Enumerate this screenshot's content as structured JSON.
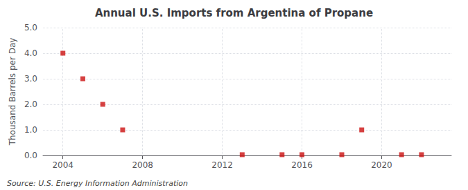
{
  "chart_data": {
    "type": "scatter",
    "title": "Annual U.S. Imports from Argentina of Propane",
    "ylabel": "Thousand Barrels per Day",
    "annotations": [
      "Source: U.S. Energy Information Administration"
    ],
    "x": [
      2004,
      2005,
      2006,
      2007,
      2013,
      2015,
      2016,
      2018,
      2019,
      2021,
      2022
    ],
    "values": [
      4.0,
      3.0,
      2.0,
      1.0,
      0.03,
      0.03,
      0.03,
      0.03,
      1.0,
      0.03,
      0.03
    ],
    "color": "#cc1111",
    "marker": "square",
    "xlim": [
      2003.0,
      2023.5
    ],
    "ylim": [
      0.0,
      5.0
    ],
    "xticks": [
      2004,
      2008,
      2012,
      2016,
      2020
    ],
    "yticks": [
      {
        "value": 0.0,
        "label": "0.0"
      },
      {
        "value": 1.0,
        "label": "1.0"
      },
      {
        "value": 2.0,
        "label": "2.0"
      },
      {
        "value": 3.0,
        "label": "3.0"
      },
      {
        "value": 4.0,
        "label": "4.0"
      },
      {
        "value": 5.0,
        "label": "5.0"
      }
    ],
    "grid": true
  }
}
